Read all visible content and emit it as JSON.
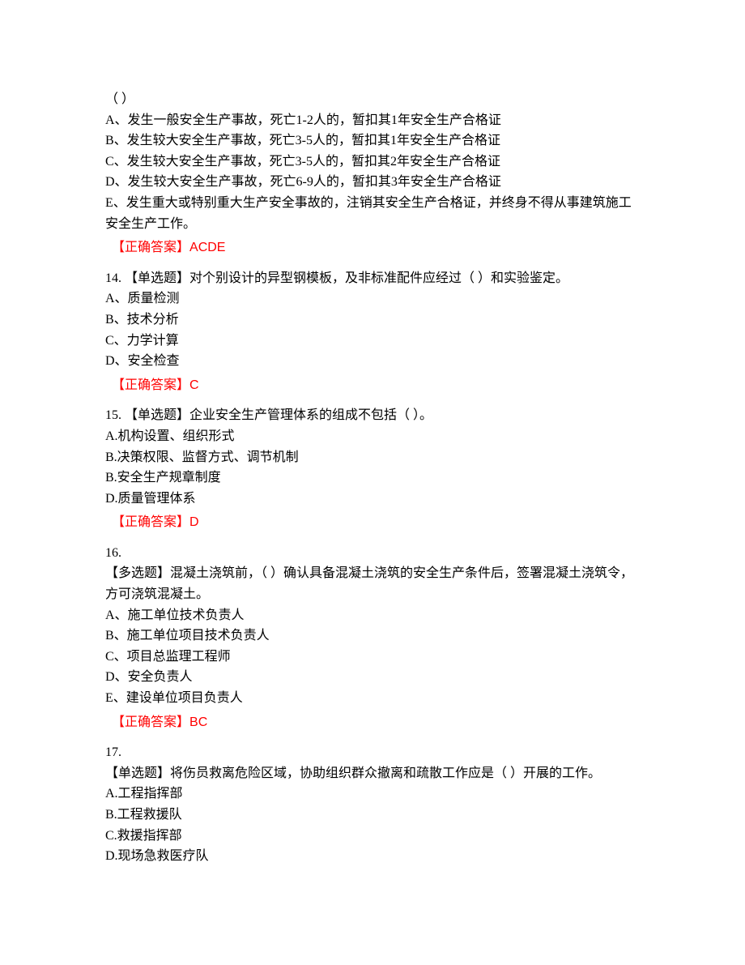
{
  "colors": {
    "text": "#000000",
    "answer": "#ff0000",
    "background": "#ffffff"
  },
  "q13": {
    "stem": "（ ）",
    "options": {
      "A": "A、发生一般安全生产事故，死亡1-2人的，暂扣其1年安全生产合格证",
      "B": "B、发生较大安全生产事故，死亡3-5人的，暂扣其1年安全生产合格证",
      "C": "C、发生较大安全生产事故，死亡3-5人的，暂扣其2年安全生产合格证",
      "D": "D、发生较大安全生产事故，死亡6-9人的，暂扣其3年安全生产合格证",
      "E": "E、发生重大或特别重大生产安全事故的，注销其安全生产合格证，并终身不得从事建筑施工安全生产工作。"
    },
    "answer_label": "【正确答案】",
    "answer_value": "ACDE"
  },
  "q14": {
    "stem": "14. 【单选题】对个别设计的异型钢模板，及非标准配件应经过（ ）和实验鉴定。",
    "options": {
      "A": "A、质量检测",
      "B": "B、技术分析",
      "C": "C、力学计算",
      "D": "D、安全检查"
    },
    "answer_label": "【正确答案】",
    "answer_value": "C"
  },
  "q15": {
    "stem": "15. 【单选题】企业安全生产管理体系的组成不包括（ ）。",
    "options": {
      "A": "A.机构设置、组织形式",
      "B": "B.决策权限、监督方式、调节机制",
      "B2": "B.安全生产规章制度",
      "D": "D.质量管理体系"
    },
    "answer_label": "【正确答案】",
    "answer_value": "D"
  },
  "q16": {
    "number": "16.",
    "stem": "【多选题】混凝土浇筑前，（ ）确认具备混凝土浇筑的安全生产条件后，签署混凝土浇筑令，方可浇筑混凝土。",
    "options": {
      "A": "A、施工单位技术负责人",
      "B": "B、施工单位项目技术负责人",
      "C": "C、项目总监理工程师",
      "D": "D、安全负责人",
      "E": "E、建设单位项目负责人"
    },
    "answer_label": "【正确答案】",
    "answer_value": "BC"
  },
  "q17": {
    "number": "17.",
    "stem": "【单选题】将伤员救离危险区域，协助组织群众撤离和疏散工作应是（ ）开展的工作。",
    "options": {
      "A": "A.工程指挥部",
      "B": "B.工程救援队",
      "C": "C.救援指挥部",
      "D": "D.现场急救医疗队"
    }
  }
}
